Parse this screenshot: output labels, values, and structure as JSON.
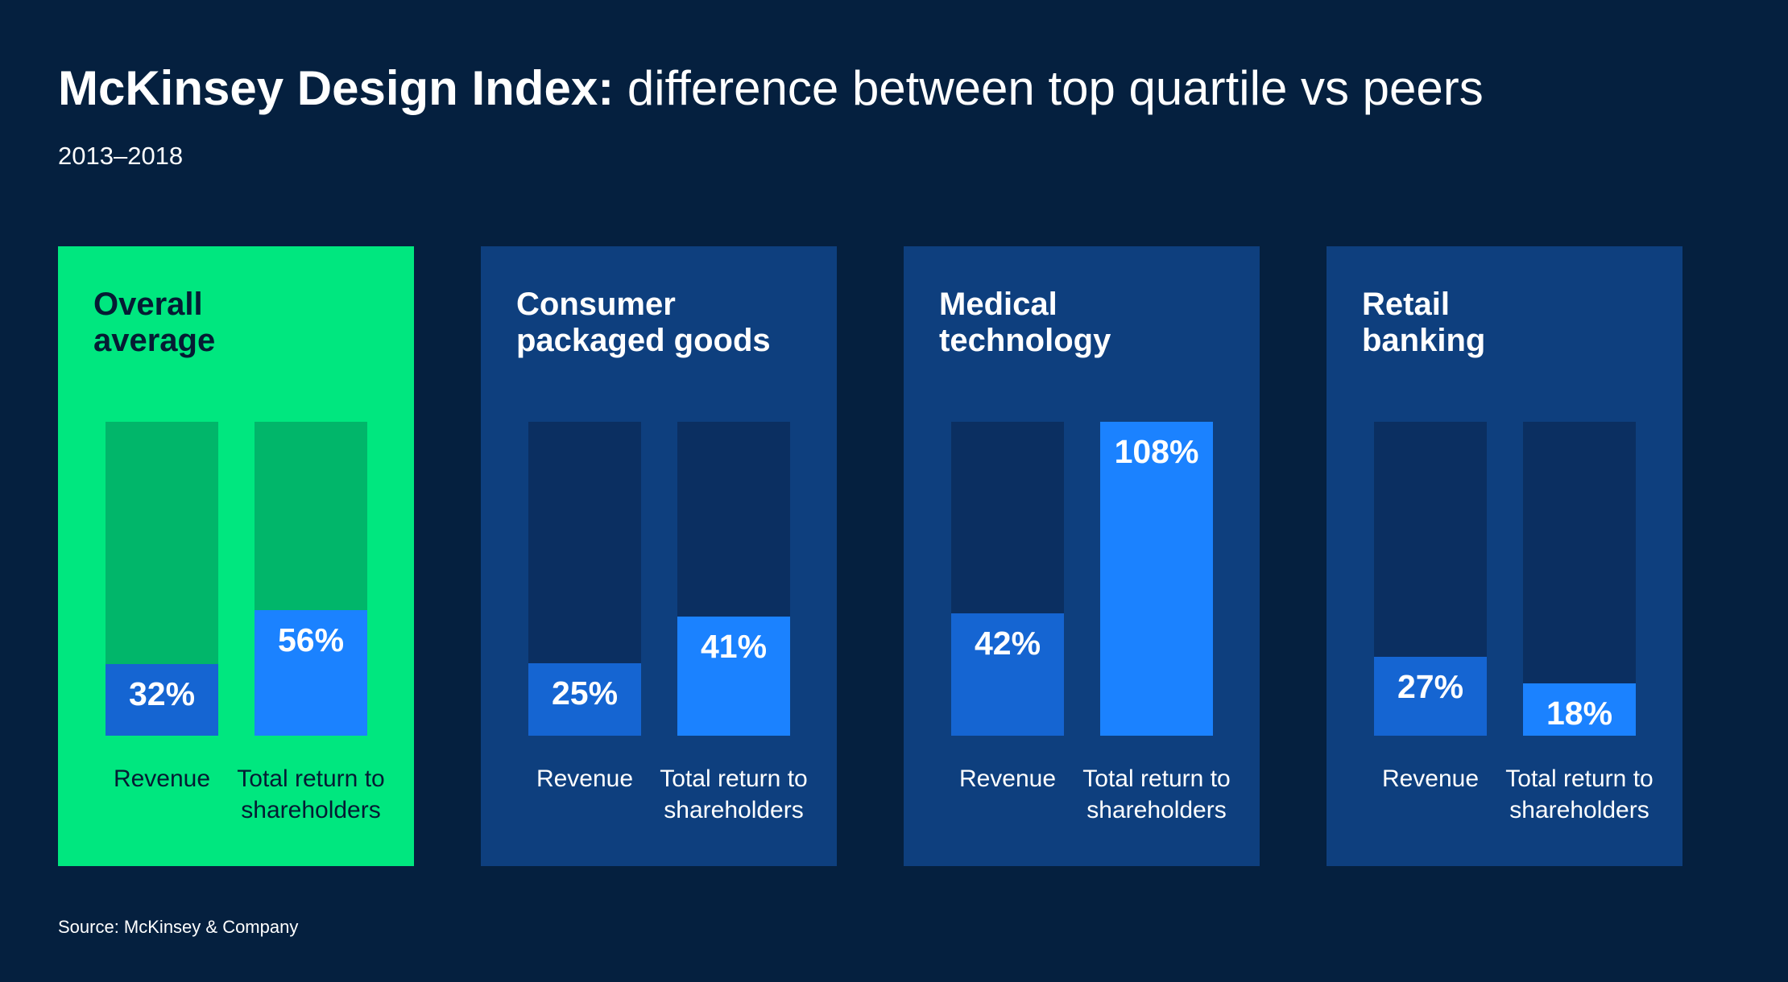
{
  "header": {
    "title_bold": "McKinsey Design Index:",
    "title_rest": " difference between top quartile vs peers",
    "subtitle": "2013–2018"
  },
  "source": "Source: McKinsey & Company",
  "colors": {
    "background": "#05203f",
    "panel": "#0e3f7e",
    "highlight_panel": "#00e77f",
    "revenue_bar": "#1565d2",
    "tsr_bar": "#1b82ff"
  },
  "chart_data": {
    "type": "bar",
    "title": "McKinsey Design Index: difference between top quartile vs peers",
    "subtitle": "2013–2018",
    "ylim": [
      0,
      108
    ],
    "unit": "%",
    "categories": [
      "Revenue",
      "Total return to\nshareholders"
    ],
    "panels": [
      {
        "title": "Overall\naverage",
        "highlight": true,
        "values": [
          32,
          56
        ],
        "value_labels": [
          "32%",
          "56%"
        ],
        "track_max": 140
      },
      {
        "title": "Consumer\npackaged goods",
        "highlight": false,
        "values": [
          25,
          41
        ],
        "value_labels": [
          "25%",
          "41%"
        ],
        "track_max": 108
      },
      {
        "title": "Medical\ntechnology",
        "highlight": false,
        "values": [
          42,
          108
        ],
        "value_labels": [
          "42%",
          "108%"
        ],
        "track_max": 108
      },
      {
        "title": "Retail\nbanking",
        "highlight": false,
        "values": [
          27,
          18
        ],
        "value_labels": [
          "27%",
          "18%"
        ],
        "track_max": 108
      }
    ]
  }
}
